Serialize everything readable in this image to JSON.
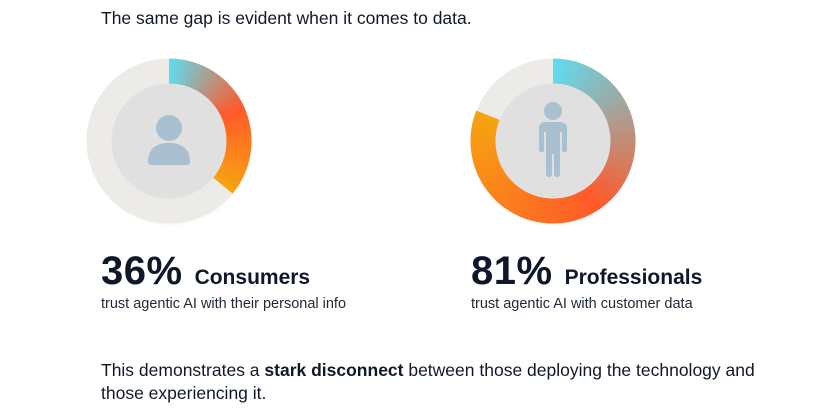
{
  "intro_text": "The same gap is evident when it comes to data.",
  "chart_data": [
    {
      "type": "pie",
      "value": 36,
      "unit": "%",
      "label": "Consumers",
      "caption": "trust agentic AI with their personal info",
      "icon": "person-bust-icon"
    },
    {
      "type": "pie",
      "value": 81,
      "unit": "%",
      "label": "Professionals",
      "caption": "trust agentic AI with customer data",
      "icon": "person-standing-icon"
    }
  ],
  "stats": [
    {
      "value_text": "36%",
      "label": "Consumers",
      "caption": "trust agentic AI with their personal info"
    },
    {
      "value_text": "81%",
      "label": "Professionals",
      "caption": "trust agentic AI with customer data"
    }
  ],
  "conclusion": {
    "before": "This demonstrates a ",
    "bold": "stark disconnect",
    "after": " between those deploying the technology and those experiencing it."
  },
  "colors": {
    "gradient_start": "#5fdcef",
    "gradient_mid": "#ff5a2a",
    "gradient_end": "#f6a410",
    "track": "#ecebe8",
    "icon": "#a9c0d1",
    "text": "#0f172a"
  }
}
